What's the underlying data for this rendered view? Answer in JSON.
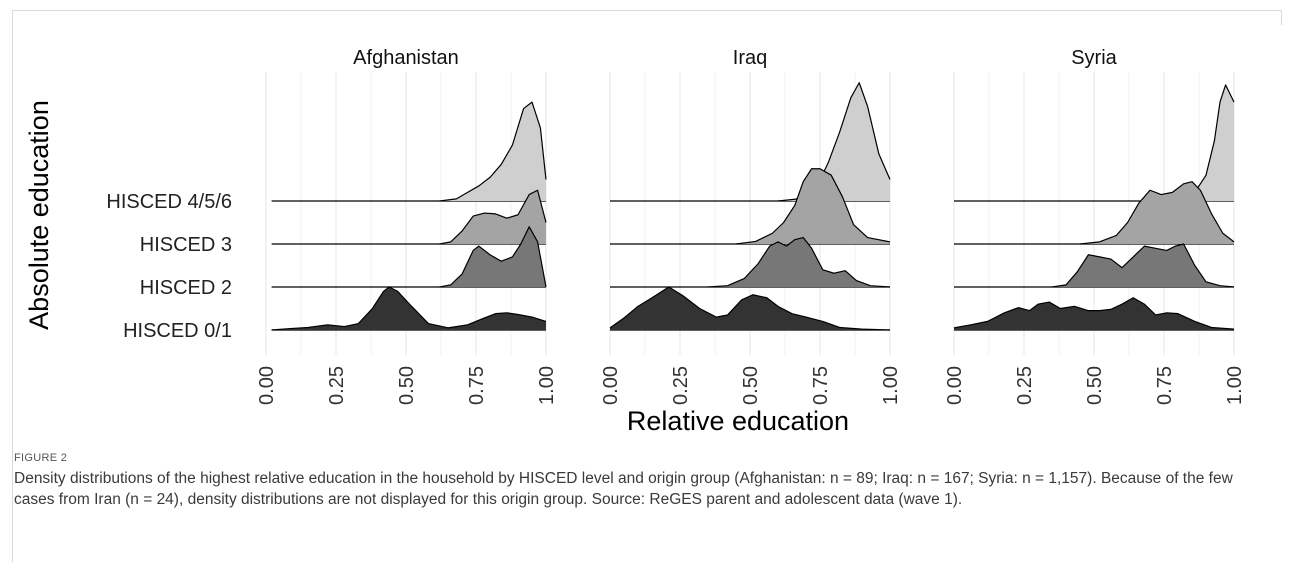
{
  "chart_data": {
    "type": "ridgeline",
    "ylabel": "Absolute education",
    "xlabel": "Relative education",
    "xlim": [
      0,
      1
    ],
    "x_ticks": [
      "0.00",
      "0.25",
      "0.50",
      "0.75",
      "1.00"
    ],
    "categories": [
      "HISCED 0/1",
      "HISCED 2",
      "HISCED 3",
      "HISCED 4/5/6"
    ],
    "fill_colors": [
      "#333333",
      "#777777",
      "#a4a4a4",
      "#cfcfcf"
    ],
    "grid": true,
    "panels": [
      {
        "title": "Afghanistan",
        "ridges": [
          {
            "category": "HISCED 0/1",
            "x": [
              0.02,
              0.08,
              0.15,
              0.22,
              0.28,
              0.33,
              0.38,
              0.42,
              0.44,
              0.47,
              0.52,
              0.58,
              0.65,
              0.72,
              0.78,
              0.82,
              0.86,
              0.9,
              0.95,
              1.0
            ],
            "y": [
              0.0,
              0.03,
              0.06,
              0.12,
              0.08,
              0.15,
              0.5,
              0.9,
              1.0,
              0.9,
              0.55,
              0.15,
              0.05,
              0.12,
              0.28,
              0.38,
              0.4,
              0.36,
              0.3,
              0.2
            ]
          },
          {
            "category": "HISCED 2",
            "x": [
              0.62,
              0.66,
              0.7,
              0.74,
              0.76,
              0.8,
              0.84,
              0.88,
              0.91,
              0.94,
              0.97,
              1.0
            ],
            "y": [
              0.0,
              0.05,
              0.3,
              0.85,
              0.95,
              0.75,
              0.6,
              0.7,
              1.0,
              1.4,
              1.05,
              0.0
            ]
          },
          {
            "category": "HISCED 3",
            "x": [
              0.62,
              0.66,
              0.7,
              0.74,
              0.78,
              0.82,
              0.86,
              0.9,
              0.94,
              0.97,
              1.0
            ],
            "y": [
              0.0,
              0.05,
              0.3,
              0.65,
              0.72,
              0.7,
              0.6,
              0.68,
              1.15,
              1.25,
              0.5
            ]
          },
          {
            "category": "HISCED 4/5/6",
            "x": [
              0.62,
              0.68,
              0.72,
              0.76,
              0.8,
              0.84,
              0.88,
              0.92,
              0.95,
              0.98,
              1.0
            ],
            "y": [
              0.0,
              0.05,
              0.2,
              0.35,
              0.55,
              0.85,
              1.3,
              2.15,
              2.3,
              1.7,
              0.5
            ]
          }
        ]
      },
      {
        "title": "Iraq",
        "ridges": [
          {
            "category": "HISCED 0/1",
            "x": [
              0.0,
              0.05,
              0.1,
              0.15,
              0.21,
              0.26,
              0.32,
              0.38,
              0.42,
              0.47,
              0.51,
              0.56,
              0.6,
              0.65,
              0.7,
              0.76,
              0.82,
              0.9,
              1.0
            ],
            "y": [
              0.05,
              0.28,
              0.55,
              0.75,
              1.0,
              0.8,
              0.5,
              0.3,
              0.35,
              0.7,
              0.82,
              0.75,
              0.55,
              0.38,
              0.3,
              0.2,
              0.06,
              0.02,
              0.0
            ]
          },
          {
            "category": "HISCED 2",
            "x": [
              0.35,
              0.42,
              0.48,
              0.53,
              0.57,
              0.6,
              0.63,
              0.66,
              0.69,
              0.72,
              0.76,
              0.8,
              0.84,
              0.88,
              0.93,
              1.0
            ],
            "y": [
              0.0,
              0.03,
              0.2,
              0.55,
              0.95,
              1.05,
              0.95,
              1.1,
              1.15,
              0.9,
              0.4,
              0.32,
              0.38,
              0.15,
              0.03,
              0.0
            ]
          },
          {
            "category": "HISCED 3",
            "x": [
              0.45,
              0.52,
              0.58,
              0.62,
              0.66,
              0.69,
              0.72,
              0.75,
              0.79,
              0.83,
              0.87,
              0.92,
              1.0
            ],
            "y": [
              0.0,
              0.06,
              0.25,
              0.5,
              0.9,
              1.45,
              1.75,
              1.75,
              1.6,
              1.1,
              0.45,
              0.15,
              0.05
            ]
          },
          {
            "category": "HISCED 4/5/6",
            "x": [
              0.6,
              0.66,
              0.7,
              0.74,
              0.78,
              0.82,
              0.86,
              0.89,
              0.92,
              0.96,
              1.0
            ],
            "y": [
              0.0,
              0.04,
              0.12,
              0.35,
              0.9,
              1.6,
              2.4,
              2.75,
              2.2,
              1.1,
              0.5
            ]
          }
        ]
      },
      {
        "title": "Syria",
        "ridges": [
          {
            "category": "HISCED 0/1",
            "x": [
              0.0,
              0.06,
              0.12,
              0.18,
              0.23,
              0.27,
              0.3,
              0.34,
              0.38,
              0.43,
              0.48,
              0.52,
              0.56,
              0.6,
              0.64,
              0.68,
              0.72,
              0.76,
              0.8,
              0.86,
              0.92,
              1.0
            ],
            "y": [
              0.05,
              0.12,
              0.2,
              0.4,
              0.52,
              0.45,
              0.6,
              0.65,
              0.5,
              0.55,
              0.45,
              0.45,
              0.48,
              0.6,
              0.75,
              0.6,
              0.35,
              0.4,
              0.38,
              0.2,
              0.06,
              0.02
            ]
          },
          {
            "category": "HISCED 2",
            "x": [
              0.35,
              0.4,
              0.44,
              0.48,
              0.52,
              0.56,
              0.6,
              0.64,
              0.68,
              0.72,
              0.76,
              0.79,
              0.82,
              0.86,
              0.9,
              0.95,
              1.0
            ],
            "y": [
              0.0,
              0.05,
              0.35,
              0.75,
              0.7,
              0.65,
              0.45,
              0.7,
              0.95,
              0.9,
              0.85,
              0.95,
              1.0,
              0.5,
              0.12,
              0.03,
              0.0
            ]
          },
          {
            "category": "HISCED 3",
            "x": [
              0.45,
              0.52,
              0.58,
              0.62,
              0.66,
              0.7,
              0.74,
              0.78,
              0.82,
              0.85,
              0.88,
              0.92,
              0.96,
              1.0
            ],
            "y": [
              0.0,
              0.05,
              0.2,
              0.5,
              0.95,
              1.25,
              1.15,
              1.2,
              1.4,
              1.45,
              1.25,
              0.7,
              0.25,
              0.05
            ]
          },
          {
            "category": "HISCED 4/5/6",
            "x": [
              0.7,
              0.76,
              0.8,
              0.84,
              0.87,
              0.9,
              0.93,
              0.95,
              0.97,
              1.0
            ],
            "y": [
              0.0,
              0.03,
              0.08,
              0.15,
              0.3,
              0.6,
              1.4,
              2.3,
              2.7,
              2.3
            ]
          }
        ]
      }
    ]
  },
  "caption": {
    "label": "FIGURE 2",
    "text": "Density distributions of the highest relative education in the household by HISCED level and origin group (Afghanistan: n = 89; Iraq: n = 167; Syria: n = 1,157). Because of the few cases from Iran (n = 24), density distributions are not displayed for this origin group. Source: ReGES parent and adolescent data (wave 1)."
  }
}
